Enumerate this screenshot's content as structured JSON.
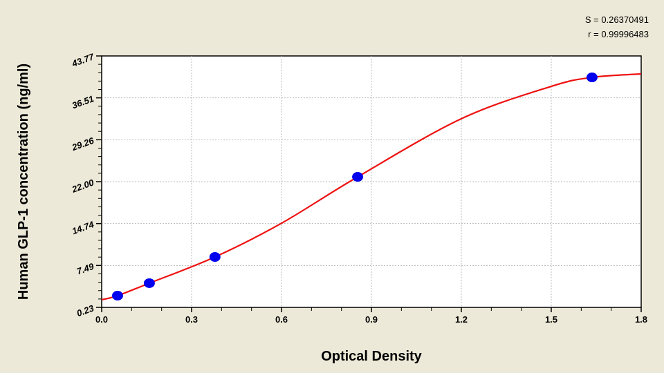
{
  "chart_data": {
    "type": "scatter",
    "title": "",
    "xlabel": "Optical Density",
    "ylabel": "Human GLP-1 concentration (ng/ml)",
    "xlim": [
      0,
      1.8
    ],
    "ylim": [
      0.23,
      43.77
    ],
    "xticks": [
      "0.0",
      "0.3",
      "0.6",
      "0.9",
      "1.2",
      "1.5",
      "1.8"
    ],
    "yticks": [
      "0.23",
      "7.49",
      "14.74",
      "22.00",
      "29.26",
      "36.51",
      "43.77"
    ],
    "grid": true,
    "points": {
      "x": [
        0.053,
        0.159,
        0.378,
        0.854,
        1.636
      ],
      "y": [
        2.26,
        4.42,
        8.96,
        22.83,
        40.06
      ],
      "color": "#0000ee"
    },
    "curve": {
      "x": [
        0,
        0.053,
        0.159,
        0.378,
        0.6,
        0.854,
        1.2,
        1.5,
        1.636,
        1.8
      ],
      "y": [
        1.55,
        2.26,
        4.42,
        8.96,
        14.8,
        22.83,
        32.9,
        38.5,
        40.06,
        40.66
      ],
      "color": "#ee1111"
    },
    "annotations": {
      "s": "S = 0.26370491",
      "r": "r = 0.99996483"
    }
  }
}
